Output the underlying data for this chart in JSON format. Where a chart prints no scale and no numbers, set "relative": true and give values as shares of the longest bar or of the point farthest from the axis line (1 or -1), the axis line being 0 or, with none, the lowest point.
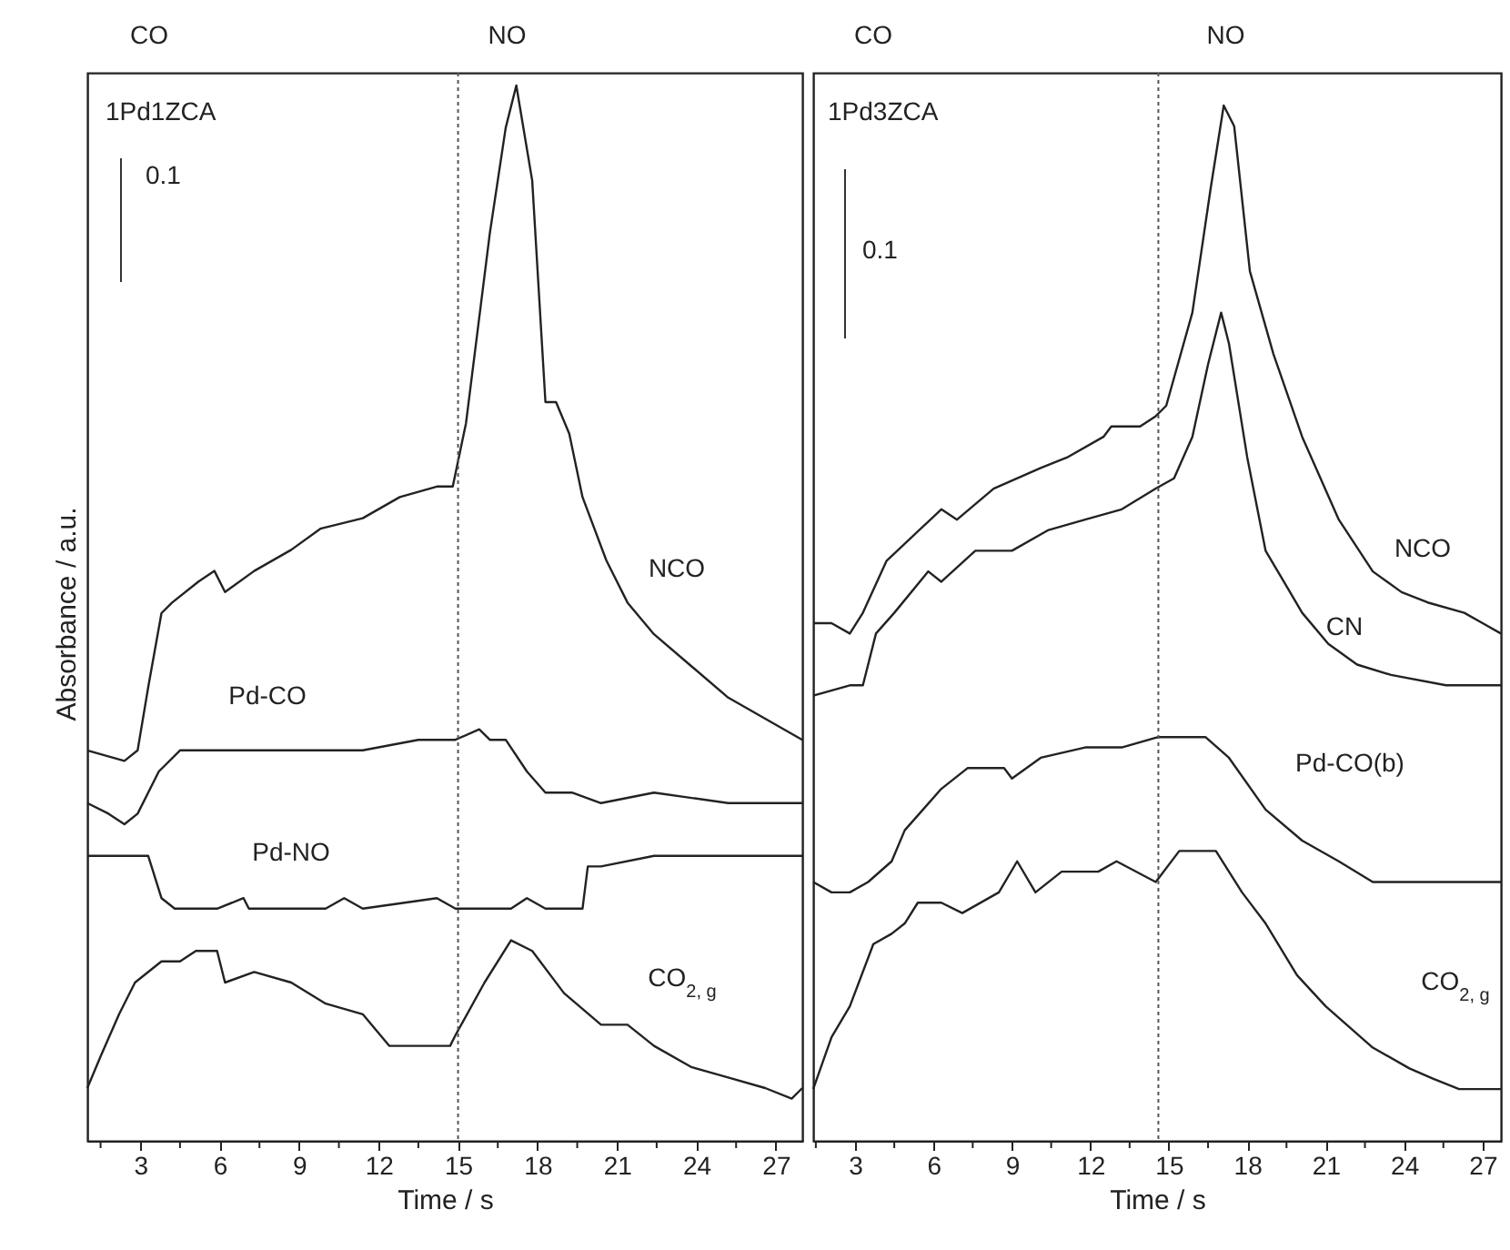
{
  "chart_data": [
    {
      "type": "line",
      "title": "1Pd1ZCA",
      "xlabel": "Time / s",
      "ylabel": "Absorbance / a.u.",
      "relative": true,
      "annotations": [
        "CO",
        "NO",
        "0.1"
      ],
      "xlim": [
        1,
        28
      ],
      "xticks": [
        {
          "value": 1.5,
          "label": null
        },
        3,
        {
          "value": 4.5,
          "label": null
        },
        6,
        {
          "value": 7.5,
          "label": null
        },
        9,
        {
          "value": 10.5,
          "label": null
        },
        12,
        {
          "value": 13.5,
          "label": null
        },
        15,
        {
          "value": 16.5,
          "label": null
        },
        18,
        {
          "value": 19.5,
          "label": null
        },
        21,
        {
          "value": 22.5,
          "label": null
        },
        24,
        {
          "value": 25.5,
          "label": null
        },
        27
      ],
      "ref_lines": [
        {
          "axis": "x",
          "value": 15,
          "line_style": "dotted"
        }
      ],
      "series": [
        {
          "name": "NCO",
          "color": "#222222",
          "x": [
            1,
            2.4,
            2.9,
            3.3,
            3.8,
            4.2,
            5.2,
            5.8,
            6.2,
            7.3,
            8.7,
            9.8,
            11.4,
            12.8,
            14.2,
            14.8,
            15.3,
            16.2,
            16.8,
            17.2,
            17.8,
            18.3,
            18.7,
            19.2,
            19.7,
            20.6,
            21.4,
            22.4,
            23.8,
            25.2,
            26.6,
            28
          ],
          "values": [
            0.37,
            0.36,
            0.37,
            0.43,
            0.5,
            0.51,
            0.53,
            0.54,
            0.52,
            0.54,
            0.56,
            0.58,
            0.59,
            0.61,
            0.62,
            0.62,
            0.68,
            0.86,
            0.96,
            1,
            0.91,
            0.7,
            0.7,
            0.67,
            0.61,
            0.55,
            0.51,
            0.48,
            0.45,
            0.42,
            0.4,
            0.38
          ]
        },
        {
          "name": "Pd-CO",
          "color": "#222222",
          "x": [
            1,
            1.8,
            2.4,
            2.9,
            3.7,
            4.5,
            5.9,
            7.3,
            8.7,
            10.0,
            11.4,
            13.5,
            14.9,
            15.8,
            16.2,
            16.8,
            17.6,
            18.3,
            19.3,
            20.4,
            22.4,
            25.2,
            26.6,
            28
          ],
          "values": [
            0.32,
            0.31,
            0.3,
            0.31,
            0.35,
            0.37,
            0.37,
            0.37,
            0.37,
            0.37,
            0.37,
            0.38,
            0.38,
            0.39,
            0.38,
            0.38,
            0.35,
            0.33,
            0.33,
            0.32,
            0.33,
            0.32,
            0.32,
            0.32
          ]
        },
        {
          "name": "Pd-NO",
          "color": "#222222",
          "x": [
            1,
            3.3,
            3.8,
            4.3,
            5.9,
            6.9,
            7.1,
            10.0,
            10.7,
            11.4,
            14.2,
            14.9,
            17.0,
            17.6,
            18.3,
            19.7,
            19.9,
            20.4,
            22.4,
            28
          ],
          "values": [
            0.27,
            0.27,
            0.23,
            0.22,
            0.22,
            0.23,
            0.22,
            0.22,
            0.23,
            0.22,
            0.23,
            0.22,
            0.22,
            0.23,
            0.22,
            0.22,
            0.26,
            0.26,
            0.27,
            0.27
          ]
        },
        {
          "name": "CO$_{2, g}$",
          "color": "#222222",
          "x": [
            1,
            1.5,
            2.2,
            2.8,
            3.8,
            4.5,
            5.1,
            5.9,
            6.2,
            7.3,
            8.7,
            10.0,
            11.4,
            12.4,
            13.5,
            14.2,
            14.7,
            14.9,
            16.0,
            17.0,
            17.8,
            19.0,
            20.4,
            21.4,
            22.4,
            23.8,
            25.2,
            26.6,
            27.6,
            28
          ],
          "values": [
            0.05,
            0.08,
            0.12,
            0.15,
            0.17,
            0.17,
            0.18,
            0.18,
            0.15,
            0.16,
            0.15,
            0.13,
            0.12,
            0.09,
            0.09,
            0.09,
            0.09,
            0.1,
            0.15,
            0.19,
            0.18,
            0.14,
            0.11,
            0.11,
            0.09,
            0.07,
            0.06,
            0.05,
            0.04,
            0.05
          ]
        }
      ]
    },
    {
      "type": "line",
      "title": "1Pd3ZCA",
      "xlabel": "Time / s",
      "relative": true,
      "annotations": [
        "CO",
        "NO",
        "0.1"
      ],
      "xlim": [
        1.4,
        27.7
      ],
      "xticks": [
        {
          "value": 1.5,
          "label": null
        },
        3,
        {
          "value": 4.5,
          "label": null
        },
        6,
        {
          "value": 7.5,
          "label": null
        },
        9,
        {
          "value": 10.5,
          "label": null
        },
        12,
        {
          "value": 13.5,
          "label": null
        },
        15,
        {
          "value": 16.5,
          "label": null
        },
        18,
        {
          "value": 19.5,
          "label": null
        },
        21,
        {
          "value": 22.5,
          "label": null
        },
        24,
        {
          "value": 25.5,
          "label": null
        },
        27
      ],
      "ref_lines": [
        {
          "axis": "x",
          "value": 14.6,
          "line_style": "dotted"
        }
      ],
      "series": [
        {
          "name": "NCO",
          "color": "#222222",
          "x": [
            1.4,
            2.1,
            2.8,
            3.3,
            4.2,
            6.3,
            6.9,
            8.3,
            10.1,
            11.1,
            12.5,
            12.8,
            13.9,
            14.5,
            14.9,
            15.9,
            16.6,
            17.1,
            17.5,
            18.1,
            19.0,
            20.1,
            21.5,
            22.8,
            23.9,
            24.9,
            26.3,
            27.0,
            27.7
          ],
          "values": [
            0.5,
            0.5,
            0.49,
            0.51,
            0.56,
            0.61,
            0.6,
            0.63,
            0.65,
            0.66,
            0.68,
            0.69,
            0.69,
            0.7,
            0.71,
            0.8,
            0.92,
            1,
            0.98,
            0.84,
            0.76,
            0.68,
            0.6,
            0.55,
            0.53,
            0.52,
            0.51,
            0.5,
            0.49
          ]
        },
        {
          "name": "CN",
          "color": "#222222",
          "x": [
            1.4,
            2.8,
            3.3,
            3.8,
            4.5,
            5.8,
            6.3,
            7.6,
            9.0,
            10.4,
            11.8,
            13.2,
            14.5,
            15.2,
            15.9,
            16.5,
            17.0,
            17.3,
            18.0,
            18.7,
            19.4,
            20.1,
            21.1,
            22.2,
            23.5,
            25.6,
            27.7
          ],
          "values": [
            0.43,
            0.44,
            0.44,
            0.49,
            0.51,
            0.55,
            0.54,
            0.57,
            0.57,
            0.59,
            0.6,
            0.61,
            0.63,
            0.64,
            0.68,
            0.75,
            0.8,
            0.77,
            0.66,
            0.57,
            0.54,
            0.51,
            0.48,
            0.46,
            0.45,
            0.44,
            0.44
          ]
        },
        {
          "name": "Pd-CO(b)",
          "color": "#222222",
          "x": [
            1.4,
            2.1,
            2.8,
            3.5,
            4.4,
            4.9,
            6.3,
            7.3,
            8.7,
            9.0,
            10.1,
            11.8,
            13.2,
            14.6,
            15.9,
            16.4,
            17.3,
            18.7,
            20.1,
            21.5,
            22.8,
            24.2,
            27.7
          ],
          "values": [
            0.25,
            0.24,
            0.24,
            0.25,
            0.27,
            0.3,
            0.34,
            0.36,
            0.36,
            0.35,
            0.37,
            0.38,
            0.38,
            0.39,
            0.39,
            0.39,
            0.37,
            0.32,
            0.29,
            0.27,
            0.25,
            0.25,
            0.25
          ]
        },
        {
          "name": "CO$_{2, g}$",
          "color": "#222222",
          "x": [
            1.4,
            2.1,
            2.8,
            3.7,
            4.4,
            4.9,
            5.4,
            6.3,
            7.1,
            8.5,
            9.2,
            9.9,
            10.9,
            12.3,
            13.0,
            14.5,
            15.4,
            15.9,
            16.8,
            17.8,
            18.7,
            19.9,
            21.0,
            21.9,
            22.8,
            24.2,
            25.1,
            26.1,
            27.0,
            27.7
          ],
          "values": [
            0.05,
            0.1,
            0.13,
            0.19,
            0.2,
            0.21,
            0.23,
            0.23,
            0.22,
            0.24,
            0.27,
            0.24,
            0.26,
            0.26,
            0.27,
            0.25,
            0.28,
            0.28,
            0.28,
            0.24,
            0.21,
            0.16,
            0.13,
            0.11,
            0.09,
            0.07,
            0.06,
            0.05,
            0.05,
            0.05
          ]
        }
      ]
    }
  ]
}
